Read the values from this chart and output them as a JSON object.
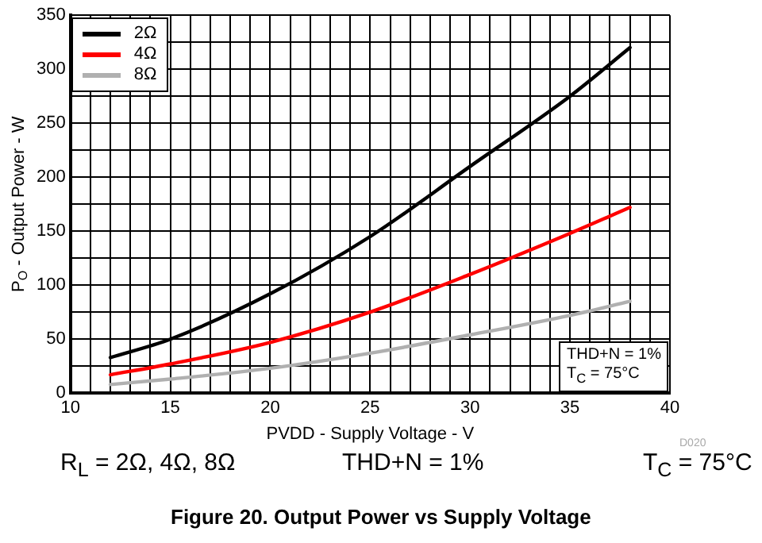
{
  "chart_data": {
    "type": "line",
    "title": "Figure 20. Output Power vs Supply Voltage",
    "xlabel": "PVDD - Supply Voltage - V",
    "ylabel": "P$_{O}$ - Output Power - W",
    "annotations": [
      "THD+N = 1%\nT$_{C}$ = 75°C",
      "D020",
      "R$_{L}$ = 2Ω, 4Ω, 8Ω",
      "THD+N = 1%",
      "T$_{C}$ = 75°C"
    ],
    "x": [
      12,
      15,
      20,
      25,
      30,
      35,
      38
    ],
    "series": [
      {
        "name": "2Ω",
        "color": "#000000",
        "values": [
          33,
          50,
          92,
          145,
          210,
          275,
          320
        ]
      },
      {
        "name": "4Ω",
        "color": "#ff0000",
        "values": [
          17,
          27,
          47,
          75,
          110,
          148,
          172
        ]
      },
      {
        "name": "8Ω",
        "color": "#b0b0b0",
        "values": [
          8,
          13,
          23,
          37,
          54,
          72,
          85
        ]
      }
    ],
    "xlim": [
      10,
      40
    ],
    "xticks": [
      10,
      {
        "value": 11,
        "label": null
      },
      {
        "value": 12,
        "label": null
      },
      {
        "value": 13,
        "label": null
      },
      {
        "value": 14,
        "label": null
      },
      15,
      {
        "value": 16,
        "label": null
      },
      {
        "value": 17,
        "label": null
      },
      {
        "value": 18,
        "label": null
      },
      {
        "value": 19,
        "label": null
      },
      20,
      {
        "value": 21,
        "label": null
      },
      {
        "value": 22,
        "label": null
      },
      {
        "value": 23,
        "label": null
      },
      {
        "value": 24,
        "label": null
      },
      25,
      {
        "value": 26,
        "label": null
      },
      {
        "value": 27,
        "label": null
      },
      {
        "value": 28,
        "label": null
      },
      {
        "value": 29,
        "label": null
      },
      30,
      {
        "value": 31,
        "label": null
      },
      {
        "value": 32,
        "label": null
      },
      {
        "value": 33,
        "label": null
      },
      {
        "value": 34,
        "label": null
      },
      35,
      {
        "value": 36,
        "label": null
      },
      {
        "value": 37,
        "label": null
      },
      {
        "value": 38,
        "label": null
      },
      {
        "value": 39,
        "label": null
      },
      40
    ],
    "ylim": [
      0,
      350
    ],
    "yticks": [
      0,
      {
        "value": 25,
        "label": null
      },
      50,
      {
        "value": 75,
        "label": null
      },
      100,
      {
        "value": 125,
        "label": null
      },
      150,
      {
        "value": 175,
        "label": null
      },
      200,
      {
        "value": 225,
        "label": null
      },
      250,
      {
        "value": 275,
        "label": null
      },
      300,
      {
        "value": 325,
        "label": null
      },
      350
    ],
    "grid": true,
    "legend": "top left",
    "marker": "none",
    "line_style": "solid"
  }
}
